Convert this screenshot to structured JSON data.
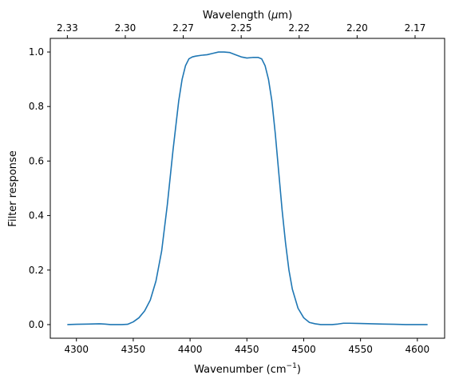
{
  "chart_data": {
    "type": "line",
    "xlabel_main": "Wavenumber (cm",
    "xlabel_sup": "−1",
    "xlabel_close": ")",
    "ylabel": "Filter response",
    "top_xlabel_prefix": "Wavelength (",
    "top_xlabel_mu": "μ",
    "top_xlabel_suffix": "m)",
    "xlim": [
      4277,
      4624
    ],
    "ylim": [
      -0.05,
      1.05
    ],
    "xticks": [
      4300,
      4350,
      4400,
      4450,
      4500,
      4550,
      4600
    ],
    "yticks": [
      0.0,
      0.2,
      0.4,
      0.6,
      0.8,
      1.0
    ],
    "top_ticks": [
      {
        "label": "2.33",
        "wavenumber": 4292
      },
      {
        "label": "2.30",
        "wavenumber": 4343
      },
      {
        "label": "2.27",
        "wavenumber": 4394
      },
      {
        "label": "2.25",
        "wavenumber": 4445
      },
      {
        "label": "2.22",
        "wavenumber": 4496
      },
      {
        "label": "2.20",
        "wavenumber": 4547
      },
      {
        "label": "2.17",
        "wavenumber": 4598
      }
    ],
    "line_color": "#1f77b4",
    "series": [
      {
        "x": [
          4292,
          4300,
          4310,
          4320,
          4325,
          4330,
          4340,
          4345,
          4350,
          4355,
          4360,
          4365,
          4370,
          4375,
          4380,
          4385,
          4390,
          4393,
          4396,
          4399,
          4402,
          4405,
          4410,
          4415,
          4420,
          4425,
          4430,
          4435,
          4440,
          4445,
          4450,
          4455,
          4460,
          4463,
          4466,
          4469,
          4472,
          4475,
          4478,
          4481,
          4484,
          4487,
          4490,
          4495,
          4500,
          4505,
          4510,
          4515,
          4520,
          4525,
          4530,
          4535,
          4540,
          4550,
          4560,
          4570,
          4580,
          4590,
          4600,
          4609
        ],
        "y": [
          0.0,
          0.001,
          0.002,
          0.003,
          0.002,
          0.0,
          0.0,
          0.001,
          0.01,
          0.025,
          0.05,
          0.09,
          0.16,
          0.27,
          0.44,
          0.64,
          0.82,
          0.9,
          0.95,
          0.975,
          0.982,
          0.985,
          0.988,
          0.99,
          0.995,
          1.0,
          1.0,
          0.998,
          0.99,
          0.982,
          0.978,
          0.98,
          0.98,
          0.975,
          0.95,
          0.9,
          0.82,
          0.7,
          0.56,
          0.42,
          0.3,
          0.2,
          0.13,
          0.06,
          0.025,
          0.008,
          0.003,
          0.0,
          0.0,
          0.0,
          0.002,
          0.005,
          0.005,
          0.004,
          0.003,
          0.002,
          0.001,
          0.0,
          0.0,
          0.0
        ]
      }
    ]
  }
}
